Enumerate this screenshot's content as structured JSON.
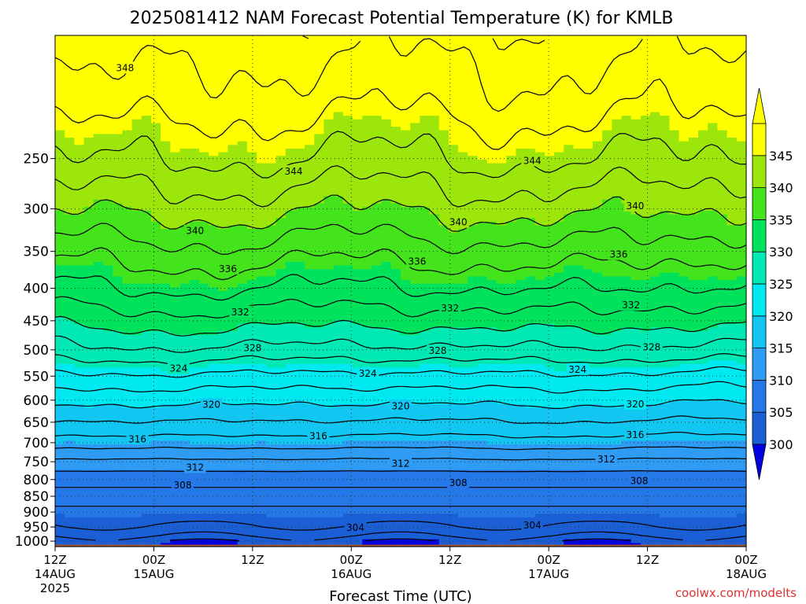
{
  "chart_data": {
    "type": "heatmap",
    "title": "2025081412 NAM Forecast Potential Temperature (K) for KMLB",
    "xlabel": "Forecast Time (UTC)",
    "ylabel": "",
    "pressure_range_hPa": [
      1020,
      160
    ],
    "y_ticks": [
      250,
      300,
      350,
      400,
      450,
      500,
      550,
      600,
      650,
      700,
      750,
      800,
      850,
      900,
      950,
      1000
    ],
    "x_ticks": [
      {
        "hour": 0,
        "line1": "12Z",
        "line2": "14AUG",
        "line3": "2025"
      },
      {
        "hour": 12,
        "line1": "00Z",
        "line2": "15AUG",
        "line3": ""
      },
      {
        "hour": 24,
        "line1": "12Z",
        "line2": "",
        "line3": ""
      },
      {
        "hour": 36,
        "line1": "00Z",
        "line2": "16AUG",
        "line3": ""
      },
      {
        "hour": 48,
        "line1": "12Z",
        "line2": "",
        "line3": ""
      },
      {
        "hour": 60,
        "line1": "00Z",
        "line2": "17AUG",
        "line3": ""
      },
      {
        "hour": 72,
        "line1": "12Z",
        "line2": "",
        "line3": ""
      },
      {
        "hour": 84,
        "line1": "00Z",
        "line2": "18AUG",
        "line3": ""
      }
    ],
    "x_range_hours": [
      0,
      84
    ],
    "grid": "dotted",
    "colorbar": {
      "ticks": [
        300,
        305,
        310,
        315,
        320,
        325,
        330,
        335,
        340,
        345
      ],
      "bins": [
        {
          "lo": 300,
          "hi": 305,
          "color": "#1a5fd6"
        },
        {
          "lo": 305,
          "hi": 310,
          "color": "#2478e8"
        },
        {
          "lo": 310,
          "hi": 315,
          "color": "#2e9cf4"
        },
        {
          "lo": 315,
          "hi": 320,
          "color": "#12c6f2"
        },
        {
          "lo": 320,
          "hi": 325,
          "color": "#00e8f0"
        },
        {
          "lo": 325,
          "hi": 330,
          "color": "#00e8b4"
        },
        {
          "lo": 330,
          "hi": 335,
          "color": "#00e25c"
        },
        {
          "lo": 335,
          "hi": 340,
          "color": "#44e41c"
        },
        {
          "lo": 340,
          "hi": 345,
          "color": "#9ce60c"
        },
        {
          "lo": 345,
          "hi": 350,
          "color": "#ffff00"
        }
      ],
      "under_color": "#0000e0",
      "over_color": "#ffff00"
    },
    "contour_interval_K": 2,
    "contour_labels": [
      {
        "value": 348,
        "hour": 8.5,
        "p": 180
      },
      {
        "value": 344,
        "hour": 29,
        "p": 262
      },
      {
        "value": 344,
        "hour": 58,
        "p": 252
      },
      {
        "value": 340,
        "hour": 17,
        "p": 325
      },
      {
        "value": 340,
        "hour": 49,
        "p": 315
      },
      {
        "value": 340,
        "hour": 70.5,
        "p": 297
      },
      {
        "value": 336,
        "hour": 21,
        "p": 373
      },
      {
        "value": 336,
        "hour": 44,
        "p": 363
      },
      {
        "value": 336,
        "hour": 68.5,
        "p": 354
      },
      {
        "value": 332,
        "hour": 22.5,
        "p": 436
      },
      {
        "value": 332,
        "hour": 48,
        "p": 430
      },
      {
        "value": 332,
        "hour": 70,
        "p": 425
      },
      {
        "value": 328,
        "hour": 24,
        "p": 497
      },
      {
        "value": 328,
        "hour": 46.5,
        "p": 502
      },
      {
        "value": 328,
        "hour": 72.5,
        "p": 495
      },
      {
        "value": 324,
        "hour": 15,
        "p": 535
      },
      {
        "value": 324,
        "hour": 38,
        "p": 545
      },
      {
        "value": 324,
        "hour": 63.5,
        "p": 537
      },
      {
        "value": 320,
        "hour": 19,
        "p": 610
      },
      {
        "value": 320,
        "hour": 42,
        "p": 613
      },
      {
        "value": 320,
        "hour": 70.5,
        "p": 609
      },
      {
        "value": 316,
        "hour": 10,
        "p": 691
      },
      {
        "value": 316,
        "hour": 32,
        "p": 683
      },
      {
        "value": 316,
        "hour": 70.5,
        "p": 681
      },
      {
        "value": 312,
        "hour": 17,
        "p": 766
      },
      {
        "value": 312,
        "hour": 42,
        "p": 755
      },
      {
        "value": 312,
        "hour": 67,
        "p": 743
      },
      {
        "value": 308,
        "hour": 15.5,
        "p": 817
      },
      {
        "value": 308,
        "hour": 49,
        "p": 810
      },
      {
        "value": 308,
        "hour": 71,
        "p": 804
      },
      {
        "value": 304,
        "hour": 36.5,
        "p": 952
      },
      {
        "value": 304,
        "hour": 58,
        "p": 945
      }
    ],
    "profile": [
      {
        "p": 1000,
        "theta": 300.5
      },
      {
        "p": 980,
        "theta": 302.2
      },
      {
        "p": 950,
        "theta": 303.8
      },
      {
        "p": 900,
        "theta": 305.3
      },
      {
        "p": 850,
        "theta": 307.2
      },
      {
        "p": 800,
        "theta": 308.7
      },
      {
        "p": 750,
        "theta": 311.5
      },
      {
        "p": 700,
        "theta": 315.0
      },
      {
        "p": 650,
        "theta": 317.8
      },
      {
        "p": 600,
        "theta": 320.5
      },
      {
        "p": 550,
        "theta": 323.5
      },
      {
        "p": 500,
        "theta": 327.5
      },
      {
        "p": 450,
        "theta": 330.8
      },
      {
        "p": 400,
        "theta": 334.0
      },
      {
        "p": 350,
        "theta": 337.0
      },
      {
        "p": 300,
        "theta": 340.5
      },
      {
        "p": 250,
        "theta": 344.0
      },
      {
        "p": 200,
        "theta": 347.0
      },
      {
        "p": 160,
        "theta": 349.0
      }
    ],
    "surface_color": "#a9552b"
  },
  "credit": "coolwx.com/modelts"
}
